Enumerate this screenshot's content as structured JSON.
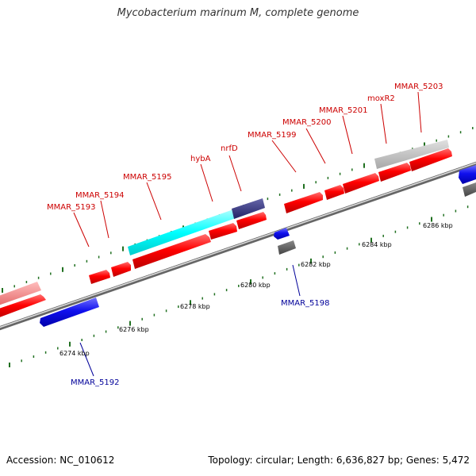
{
  "title": "Mycobacterium marinum M, complete genome",
  "footer": {
    "accession": "Accession: NC_010612",
    "summary": "Topology: circular; Length: 6,636,827 bp; Genes: 5,472"
  },
  "colors": {
    "forward_gene": "#ff0000",
    "reverse_gene": "#0000ee",
    "highlight": "#00ffff",
    "dark_blue": "#333388",
    "gray": "#bbbbbb",
    "dark_gray": "#555555",
    "tick": "#207020",
    "label_red": "#cc0000",
    "label_blue": "#000099"
  },
  "scale_labels": [
    "6274 kbp",
    "6276 kbp",
    "6278 kbp",
    "6280 kbp",
    "6282 kbp",
    "6284 kbp",
    "6286 kbp"
  ],
  "forward_labels": [
    "MMAR_5193",
    "MMAR_5194",
    "MMAR_5195",
    "hybA",
    "nrfD",
    "MMAR_5199",
    "MMAR_5200",
    "MMAR_5201",
    "moxR2",
    "MMAR_5203"
  ],
  "reverse_labels": [
    "MMAR_5192",
    "MMAR_5198"
  ]
}
